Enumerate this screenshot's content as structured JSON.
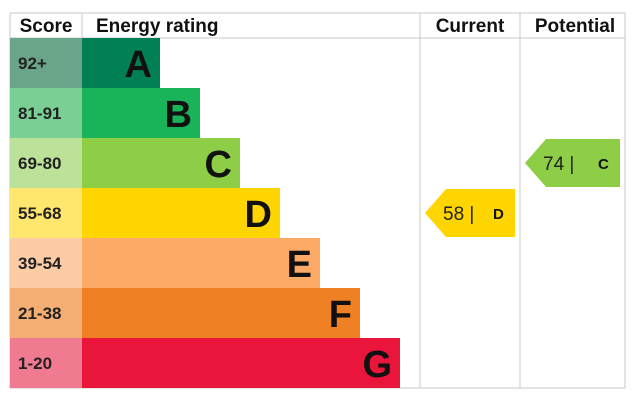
{
  "headers": {
    "score": "Score",
    "rating": "Energy rating",
    "current": "Current",
    "potential": "Potential"
  },
  "chart_data": {
    "type": "bar",
    "title": "",
    "bands": [
      {
        "letter": "A",
        "range": "92+",
        "color": "#008054",
        "score_bg": "#6aa589"
      },
      {
        "letter": "B",
        "range": "81-91",
        "color": "#19b459",
        "score_bg": "#79cf94"
      },
      {
        "letter": "C",
        "range": "69-80",
        "color": "#8dce46",
        "score_bg": "#bce198"
      },
      {
        "letter": "D",
        "range": "55-68",
        "color": "#ffd500",
        "score_bg": "#ffe66f"
      },
      {
        "letter": "E",
        "range": "39-54",
        "color": "#fcaa65",
        "score_bg": "#fccca5"
      },
      {
        "letter": "F",
        "range": "21-38",
        "color": "#ef8023",
        "score_bg": "#f4ad72"
      },
      {
        "letter": "G",
        "range": "1-20",
        "color": "#e9153b",
        "score_bg": "#f07a8f"
      }
    ],
    "current": {
      "value": 58,
      "letter": "D",
      "text": "58 |",
      "color": "#ffd500"
    },
    "potential": {
      "value": 74,
      "letter": "C",
      "text": "74 |",
      "color": "#8dce46"
    }
  }
}
